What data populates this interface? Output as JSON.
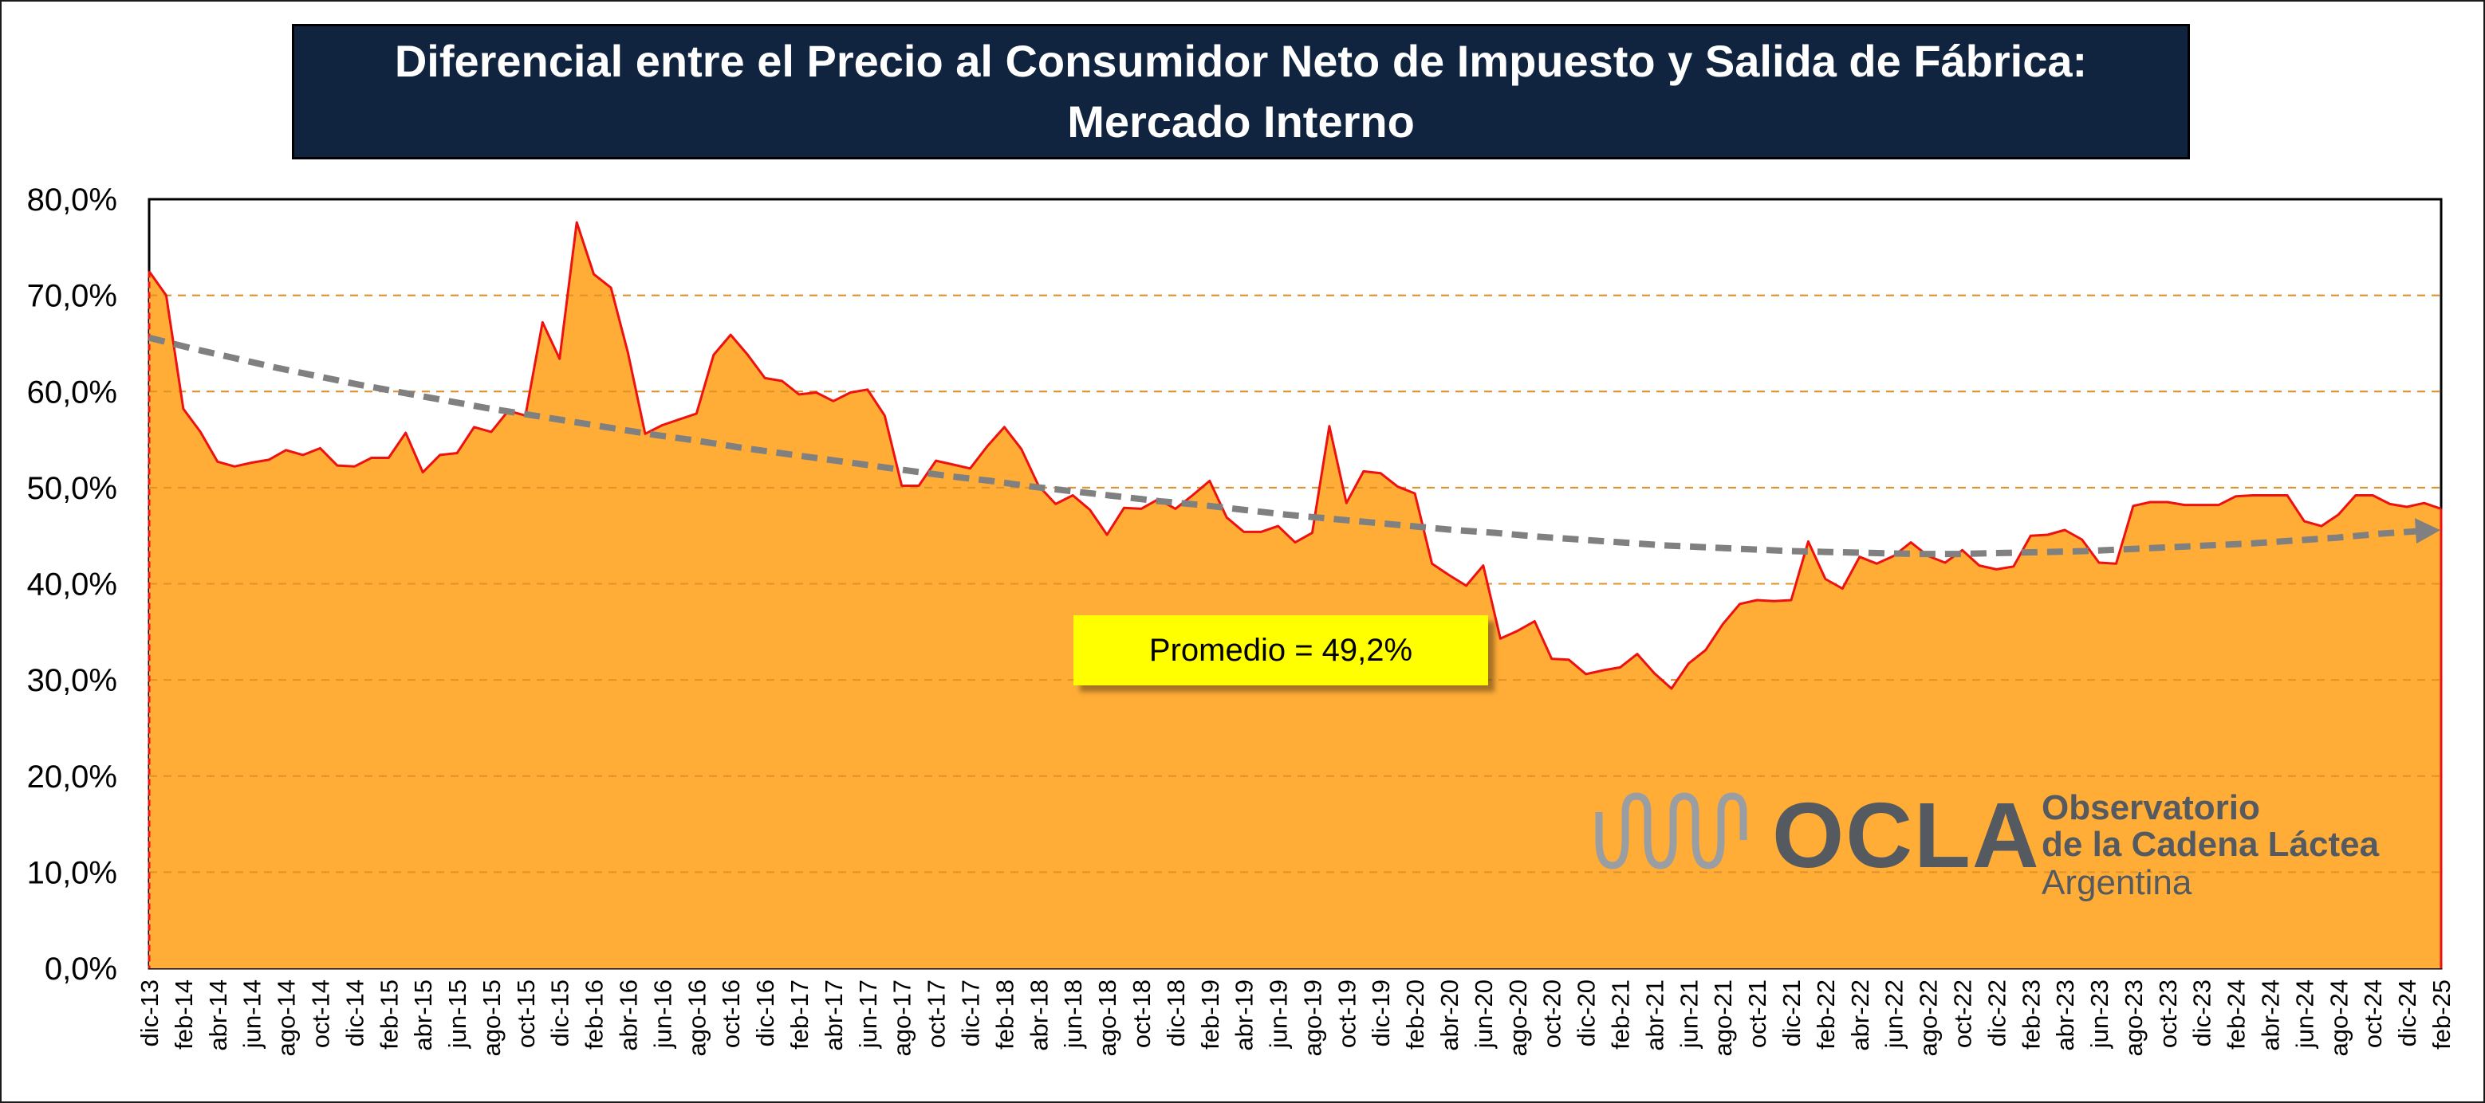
{
  "chart_data": {
    "type": "area",
    "title": "Diferencial entre el Precio al Consumidor Neto de Impuesto y Salida de Fábrica: Mercado Interno",
    "xlabel": "",
    "ylabel": "",
    "ylim": [
      0,
      80
    ],
    "y_ticks": [
      "0,0%",
      "10,0%",
      "20,0%",
      "30,0%",
      "40,0%",
      "50,0%",
      "60,0%",
      "70,0%",
      "80,0%"
    ],
    "x_labels": [
      "dic-13",
      "feb-14",
      "abr-14",
      "jun-14",
      "ago-14",
      "oct-14",
      "dic-14",
      "feb-15",
      "abr-15",
      "jun-15",
      "ago-15",
      "oct-15",
      "dic-15",
      "feb-16",
      "abr-16",
      "jun-16",
      "ago-16",
      "oct-16",
      "dic-16",
      "feb-17",
      "abr-17",
      "jun-17",
      "ago-17",
      "oct-17",
      "dic-17",
      "feb-18",
      "abr-18",
      "jun-18",
      "ago-18",
      "oct-18",
      "dic-18",
      "feb-19",
      "abr-19",
      "jun-19",
      "ago-19",
      "oct-19",
      "dic-19",
      "feb-20",
      "abr-20",
      "jun-20",
      "ago-20",
      "oct-20",
      "dic-20",
      "feb-21",
      "abr-21",
      "jun-21",
      "ago-21",
      "oct-21",
      "dic-21",
      "feb-22",
      "abr-22",
      "jun-22",
      "ago-22",
      "oct-22",
      "dic-22",
      "feb-23",
      "abr-23",
      "jun-23",
      "ago-23",
      "oct-23",
      "dic-23",
      "feb-24",
      "abr-24",
      "jun-24",
      "ago-24",
      "oct-24",
      "dic-24",
      "feb-25"
    ],
    "grid": "horizontal dashed",
    "series": [
      {
        "values": [
          72.5,
          70.0,
          58.2,
          55.8,
          52.7,
          52.2,
          52.6,
          52.9,
          53.9,
          53.4,
          54.1,
          52.3,
          52.2,
          53.1,
          53.1,
          55.7,
          51.6,
          53.4,
          53.6,
          56.3,
          55.8,
          58.0,
          57.5,
          67.2,
          63.4,
          77.6,
          72.2,
          70.8,
          64.0,
          55.6,
          56.5,
          57.1,
          57.7,
          63.8,
          65.9,
          63.8,
          61.4,
          61.1,
          59.7,
          59.9,
          59.0,
          59.9,
          60.2,
          57.5,
          50.2,
          50.2,
          52.8,
          52.4,
          52.0,
          54.3,
          56.3,
          54.0,
          50.2,
          48.3,
          49.2,
          47.7,
          45.1,
          47.9,
          47.8,
          48.8,
          47.8,
          49.2,
          50.7,
          46.9,
          45.4,
          45.4,
          46.0,
          44.3,
          45.3,
          56.4,
          48.4,
          51.7,
          51.5,
          50.1,
          49.4,
          42.1,
          40.9,
          39.8,
          41.9,
          34.3,
          35.1,
          36.1,
          32.2,
          32.1,
          30.6,
          31.0,
          31.3,
          32.7,
          30.7,
          29.1,
          31.7,
          33.1,
          35.8,
          37.9,
          38.3,
          38.2,
          38.3,
          44.4,
          40.5,
          39.5,
          42.8,
          42.1,
          42.9,
          44.3,
          42.9,
          42.2,
          43.5,
          41.9,
          41.5,
          41.8,
          45.0,
          45.1,
          45.6,
          44.6,
          42.2,
          42.1,
          48.1,
          48.5,
          48.5,
          48.2,
          48.2,
          48.2,
          49.1,
          49.2,
          49.2,
          49.2,
          46.5,
          46.0,
          47.2,
          49.2,
          49.2,
          48.3,
          48.0,
          48.4,
          47.8
        ]
      }
    ],
    "trend_values": [
      65.6,
      64.5,
      63.5,
      62.5,
      61.6,
      60.7,
      59.9,
      59.1,
      58.3,
      57.6,
      56.9,
      56.2,
      55.5,
      54.9,
      54.2,
      53.6,
      53.0,
      52.4,
      51.8,
      51.2,
      50.7,
      50.1,
      49.6,
      49.1,
      48.6,
      48.2,
      47.7,
      47.2,
      46.8,
      46.4,
      46.0,
      45.6,
      45.3,
      44.9,
      44.6,
      44.3,
      44.0,
      43.8,
      43.6,
      43.4,
      43.3,
      43.2,
      43.1,
      43.1,
      43.2,
      43.3,
      43.4,
      43.6,
      43.8,
      44.0,
      44.2,
      44.5,
      44.8,
      45.2,
      45.5
    ],
    "annotation": "Promedio = 49,2%",
    "colors": {
      "area": "#ffad37",
      "line": "#ee1111",
      "trend": "#808080",
      "title_bg": "#10233f",
      "annotation_bg": "#ffff00"
    }
  },
  "logo": {
    "word": "OCLA",
    "line1": "Observatorio",
    "line2": "de la Cadena Láctea",
    "line3": "Argentina",
    "color": "#555a60"
  }
}
